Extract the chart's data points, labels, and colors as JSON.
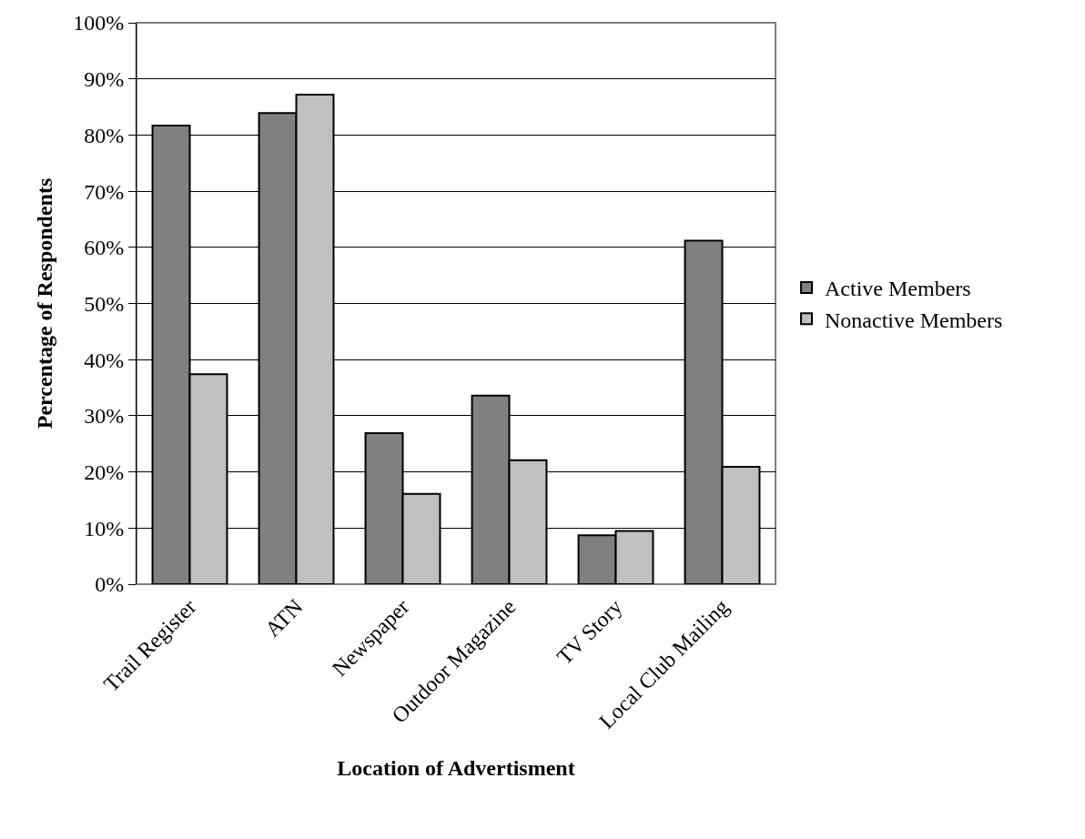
{
  "chart_data": {
    "type": "bar",
    "xlabel": "Location of Advertisment",
    "ylabel": "Percentage of Respondents",
    "categories": [
      "Trail Register",
      "ATN",
      "Newspaper",
      "Outdoor Magazine",
      "TV Story",
      "Local Club Mailing"
    ],
    "series": [
      {
        "name": "Active Members",
        "color": "#808080",
        "values": [
          81.7,
          83.9,
          26.9,
          33.6,
          8.7,
          61.2
        ]
      },
      {
        "name": "Nonactive Members",
        "color": "#c0c0c0",
        "values": [
          37.4,
          87.2,
          16.1,
          22.1,
          9.5,
          20.9
        ]
      }
    ],
    "ylim": [
      0,
      100
    ],
    "yticks": [
      {
        "value": 0,
        "label": "0%"
      },
      {
        "value": 10,
        "label": "10%"
      },
      {
        "value": 20,
        "label": "20%"
      },
      {
        "value": 30,
        "label": "30%"
      },
      {
        "value": 40,
        "label": "40%"
      },
      {
        "value": 50,
        "label": "50%"
      },
      {
        "value": 60,
        "label": "60%"
      },
      {
        "value": 70,
        "label": "70%"
      },
      {
        "value": 80,
        "label": "80%"
      },
      {
        "value": 90,
        "label": "90%"
      },
      {
        "value": 100,
        "label": "100%"
      }
    ],
    "grid": "y",
    "legend": "right"
  }
}
